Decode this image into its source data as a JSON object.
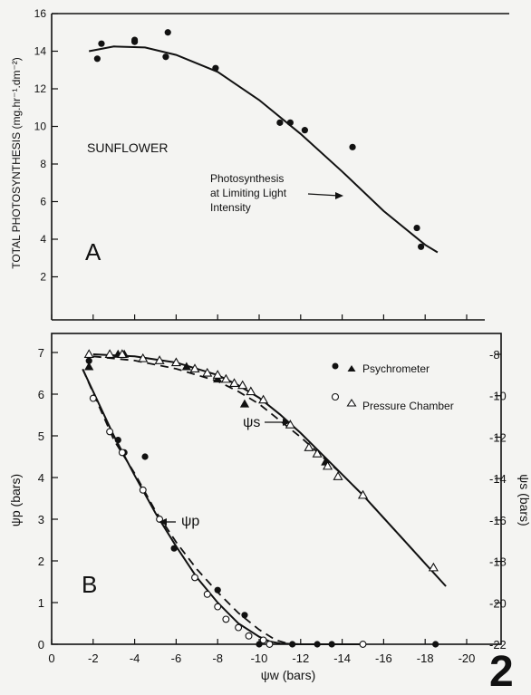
{
  "figure_number": "2",
  "chart_data": [
    {
      "type": "scatter",
      "panel_label": "A",
      "species_label": "SUNFLOWER",
      "ylabel": "TOTAL PHOTOSYNTHESIS (mg.hr⁻¹.dm⁻²)",
      "xlim": [
        0,
        -22
      ],
      "ylim": [
        1,
        16
      ],
      "x_ticks": [
        0,
        -2,
        -4,
        -6,
        -8,
        -10,
        -12,
        -14,
        -16,
        -18,
        -20
      ],
      "y_ticks": [
        2,
        4,
        6,
        8,
        10,
        12,
        14,
        16
      ],
      "annotation": [
        "Photosynthesis",
        "at Limiting Light",
        "Intensity"
      ],
      "series": [
        {
          "marker": "filled-circle",
          "x": [
            -2.2,
            -2.4,
            -4.0,
            -4.0,
            -5.5,
            -5.6,
            -7.9,
            -11.0,
            -11.5,
            -12.2,
            -14.5,
            -17.6,
            -17.8
          ],
          "y": [
            13.6,
            14.4,
            14.5,
            14.6,
            13.7,
            15.0,
            13.1,
            10.2,
            10.2,
            9.8,
            8.9,
            4.6,
            3.6
          ]
        },
        {
          "line": "solid",
          "x": [
            -1.8,
            -3,
            -4.5,
            -6,
            -8,
            -10,
            -12,
            -14,
            -16,
            -18,
            -18.6
          ],
          "y": [
            14.0,
            14.25,
            14.2,
            13.8,
            12.9,
            11.4,
            9.6,
            7.6,
            5.5,
            3.7,
            3.3
          ]
        }
      ]
    },
    {
      "type": "scatter",
      "panel_label": "B",
      "ylabel": "ψp (bars)",
      "y2label": "ψs (bars)",
      "xlabel": "ψw (bars)",
      "xlim": [
        0,
        -22
      ],
      "ylim": [
        0,
        7.5
      ],
      "y2lim": [
        -22,
        -7
      ],
      "x_ticks": [
        0,
        -2,
        -4,
        -6,
        -8,
        -10,
        -12,
        -14,
        -16,
        -18,
        -20
      ],
      "y_ticks": [
        0,
        1,
        2,
        3,
        4,
        5,
        6,
        7
      ],
      "y2_ticks": [
        -8,
        -10,
        -12,
        -14,
        -16,
        -18,
        -20,
        -22
      ],
      "curve_labels": [
        "ψp",
        "ψs"
      ],
      "legend": [
        "Psychrometer",
        "Pressure Chamber"
      ],
      "series": [
        {
          "name": "Psychrometer",
          "marker": "filled-circle",
          "axis": "left",
          "x": [
            -1.8,
            -3.2,
            -3.5,
            -4.5,
            -5.9,
            -8.0,
            -9.3,
            -10.0,
            -11.6,
            -12.8,
            -13.5,
            -18.5
          ],
          "y": [
            6.8,
            4.9,
            4.6,
            4.5,
            2.3,
            1.3,
            0.7,
            0.0,
            0.0,
            0.0,
            0.0,
            0.0
          ]
        },
        {
          "name": "Pressure Chamber",
          "marker": "open-circle",
          "axis": "left",
          "x": [
            -2.0,
            -2.8,
            -3.4,
            -4.4,
            -5.2,
            -6.9,
            -7.5,
            -8.0,
            -8.4,
            -9.0,
            -9.5,
            -10.2,
            -10.5,
            -15.0
          ],
          "y": [
            5.9,
            5.1,
            4.6,
            3.7,
            3.0,
            1.6,
            1.2,
            0.9,
            0.6,
            0.4,
            0.2,
            0.1,
            0.0,
            0.0
          ]
        },
        {
          "name": "Psychrometer",
          "marker": "filled-triangle",
          "axis": "right",
          "x": [
            -1.8,
            -3.2,
            -3.5,
            -6.5,
            -8.0,
            -9.3,
            -12.8,
            -13.2
          ],
          "y": [
            -8.6,
            -8.0,
            -8.0,
            -8.6,
            -9.2,
            -10.4,
            -12.8,
            -13.2
          ]
        },
        {
          "name": "Pressure Chamber",
          "marker": "open-triangle",
          "axis": "right",
          "x": [
            -1.8,
            -2.8,
            -3.4,
            -4.4,
            -5.2,
            -6.0,
            -6.9,
            -7.5,
            -8.0,
            -8.4,
            -8.8,
            -9.2,
            -9.6,
            -10.2,
            -11.5,
            -12.4,
            -12.8,
            -13.3,
            -13.8,
            -15.0,
            -18.4
          ],
          "y": [
            -8.0,
            -8.0,
            -8.0,
            -8.2,
            -8.3,
            -8.4,
            -8.7,
            -8.9,
            -9.0,
            -9.2,
            -9.4,
            -9.5,
            -9.8,
            -10.2,
            -11.4,
            -12.5,
            -12.8,
            -13.4,
            -13.9,
            -14.8,
            -18.3
          ]
        },
        {
          "line": "solid",
          "axis": "left",
          "x": [
            -1.5,
            -3,
            -4,
            -5,
            -6,
            -7,
            -8,
            -9,
            -10,
            -10.5,
            -11,
            -12,
            -13,
            -15
          ],
          "y": [
            6.6,
            5.0,
            4.05,
            3.15,
            2.35,
            1.6,
            1.0,
            0.5,
            0.18,
            0.07,
            0.02,
            0.0,
            0.0,
            0.0
          ]
        },
        {
          "line": "dashed",
          "axis": "left",
          "x": [
            -1.5,
            -3,
            -4,
            -5,
            -6,
            -7,
            -8,
            -9,
            -10,
            -10.8,
            -11.5,
            -12
          ],
          "y": [
            6.6,
            4.9,
            4.1,
            3.2,
            2.45,
            1.8,
            1.25,
            0.75,
            0.35,
            0.1,
            0.0,
            0.0
          ]
        },
        {
          "line": "solid",
          "axis": "right",
          "x": [
            -2,
            -4,
            -6,
            -8,
            -9,
            -10,
            -11,
            -12,
            -13,
            -14,
            -15,
            -16,
            -17,
            -18,
            -19
          ],
          "y": [
            -8.0,
            -8.1,
            -8.4,
            -9.0,
            -9.5,
            -10.1,
            -10.9,
            -11.8,
            -12.8,
            -13.8,
            -14.8,
            -15.9,
            -17.0,
            -18.1,
            -19.2
          ]
        },
        {
          "line": "dashed",
          "axis": "right",
          "x": [
            -2,
            -4,
            -6,
            -8,
            -9,
            -10,
            -11,
            -12,
            -13,
            -14,
            -15,
            -16,
            -17,
            -18
          ],
          "y": [
            -8.1,
            -8.3,
            -8.7,
            -9.3,
            -9.8,
            -10.4,
            -11.2,
            -12.0,
            -12.9,
            -13.8,
            -14.8,
            -15.9,
            -17.0,
            -18.1
          ]
        }
      ]
    }
  ]
}
